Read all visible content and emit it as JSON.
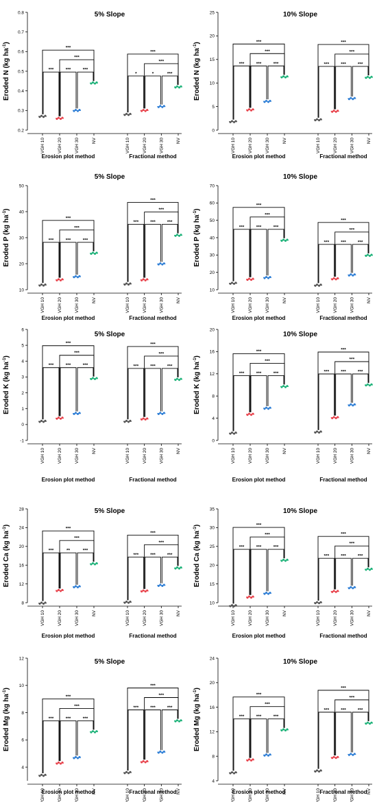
{
  "chart_data": [
    {
      "type": "scatter",
      "title": "5% Slope",
      "ylabel": "Eroded N (kg ha",
      "ylabel_sup": "-1",
      "ylabel_end": ")",
      "ylim": [
        0.2,
        0.8
      ],
      "yticks": [
        "0.2",
        "0.3",
        "0.4",
        "0.5",
        "0.6",
        "0.7",
        "0.8"
      ],
      "groups": [
        {
          "name": "Erosion plot method",
          "categories": [
            "VGH 10",
            "VGH 20",
            "VGH 30",
            "NV"
          ],
          "values": [
            0.27,
            0.26,
            0.3,
            0.44
          ],
          "brackets": [
            [
              "VGH 10",
              "VGH 20",
              "***"
            ],
            [
              "VGH 20",
              "VGH 30",
              "***"
            ],
            [
              "VGH 30",
              "NV",
              "***"
            ],
            [
              "VGH 20",
              "NV",
              "***"
            ],
            [
              "VGH 10",
              "NV",
              "***"
            ]
          ]
        },
        {
          "name": "Fractional method",
          "categories": [
            "VGH 10",
            "VGH 20",
            "VGH 30",
            "NV"
          ],
          "values": [
            0.28,
            0.3,
            0.32,
            0.42
          ],
          "brackets": [
            [
              "VGH 10",
              "VGH 20",
              "*"
            ],
            [
              "VGH 20",
              "VGH 30",
              "*"
            ],
            [
              "VGH 30",
              "NV",
              "***"
            ],
            [
              "VGH 20",
              "NV",
              "***"
            ],
            [
              "VGH 10",
              "NV",
              "***"
            ]
          ]
        }
      ]
    },
    {
      "type": "scatter",
      "title": "10% Slope",
      "ylabel": "Eroded N (kg ha",
      "ylabel_sup": "-1",
      "ylabel_end": ")",
      "ylim": [
        0,
        25
      ],
      "yticks": [
        "0",
        "5",
        "10",
        "15",
        "20",
        "25"
      ],
      "groups": [
        {
          "name": "Erosion plot method",
          "categories": [
            "VGH 10",
            "VGH 20",
            "VGH 30",
            "NV"
          ],
          "values": [
            1.8,
            4.3,
            6.1,
            11.3
          ],
          "brackets": [
            [
              "VGH 10",
              "VGH 20",
              "***"
            ],
            [
              "VGH 20",
              "VGH 30",
              "***"
            ],
            [
              "VGH 30",
              "NV",
              "***"
            ],
            [
              "VGH 20",
              "NV",
              "***"
            ],
            [
              "VGH 10",
              "NV",
              "***"
            ]
          ]
        },
        {
          "name": "Fractional method",
          "categories": [
            "VGH 10",
            "VGH 20",
            "VGH 30",
            "NV"
          ],
          "values": [
            2.2,
            4.0,
            6.7,
            11.2
          ],
          "brackets": [
            [
              "VGH 10",
              "VGH 20",
              "***"
            ],
            [
              "VGH 20",
              "VGH 30",
              "***"
            ],
            [
              "VGH 30",
              "NV",
              "***"
            ],
            [
              "VGH 20",
              "NV",
              "***"
            ],
            [
              "VGH 10",
              "NV",
              "***"
            ]
          ]
        }
      ]
    },
    {
      "type": "scatter",
      "title": "5% Slope",
      "ylabel": "Eroded P (kg ha",
      "ylabel_sup": "-1",
      "ylabel_end": ")",
      "ylim": [
        10,
        50
      ],
      "yticks": [
        "10",
        "20",
        "30",
        "40",
        "50"
      ],
      "groups": [
        {
          "name": "Erosion plot method",
          "categories": [
            "VGH 10",
            "VGH 20",
            "VGH 30",
            "NV"
          ],
          "values": [
            11.8,
            13.8,
            15.0,
            24.0
          ],
          "brackets": [
            [
              "VGH 10",
              "VGH 20",
              "***"
            ],
            [
              "VGH 20",
              "VGH 30",
              "***"
            ],
            [
              "VGH 30",
              "NV",
              "***"
            ],
            [
              "VGH 20",
              "NV",
              "***"
            ],
            [
              "VGH 10",
              "NV",
              "***"
            ]
          ]
        },
        {
          "name": "Fractional method",
          "categories": [
            "VGH 10",
            "VGH 20",
            "VGH 30",
            "NV"
          ],
          "values": [
            12.2,
            13.8,
            19.9,
            30.9
          ],
          "brackets": [
            [
              "VGH 10",
              "VGH 20",
              "***"
            ],
            [
              "VGH 20",
              "VGH 30",
              "***"
            ],
            [
              "VGH 30",
              "NV",
              "***"
            ],
            [
              "VGH 20",
              "NV",
              "***"
            ],
            [
              "VGH 10",
              "NV",
              "***"
            ]
          ]
        }
      ]
    },
    {
      "type": "scatter",
      "title": "10% Slope",
      "ylabel": "Eroded P (kg ha",
      "ylabel_sup": "-1",
      "ylabel_end": ")",
      "ylim": [
        10,
        70
      ],
      "yticks": [
        "10",
        "20",
        "30",
        "40",
        "50",
        "60",
        "70"
      ],
      "groups": [
        {
          "name": "Erosion plot method",
          "categories": [
            "VGH 10",
            "VGH 20",
            "VGH 30",
            "NV"
          ],
          "values": [
            13.7,
            16.0,
            17.0,
            38.5
          ],
          "brackets": [
            [
              "VGH 10",
              "VGH 20",
              "***"
            ],
            [
              "VGH 20",
              "VGH 30",
              "***"
            ],
            [
              "VGH 30",
              "NV",
              "***"
            ],
            [
              "VGH 20",
              "NV",
              "***"
            ],
            [
              "VGH 10",
              "NV",
              "***"
            ]
          ]
        },
        {
          "name": "Fractional method",
          "categories": [
            "VGH 10",
            "VGH 20",
            "VGH 30",
            "NV"
          ],
          "values": [
            12.6,
            16.3,
            18.5,
            29.8
          ],
          "brackets": [
            [
              "VGH 10",
              "VGH 20",
              "***"
            ],
            [
              "VGH 20",
              "VGH 30",
              "***"
            ],
            [
              "VGH 30",
              "NV",
              "***"
            ],
            [
              "VGH 20",
              "NV",
              "***"
            ],
            [
              "VGH 10",
              "NV",
              "***"
            ]
          ]
        }
      ]
    },
    {
      "type": "scatter",
      "title": "5% Slope",
      "ylabel": "Eroded K (kg ha",
      "ylabel_sup": "-1",
      "ylabel_end": ")",
      "ylim": [
        -1,
        6
      ],
      "yticks": [
        "-1",
        "0",
        "1",
        "2",
        "3",
        "4",
        "5",
        "6"
      ],
      "groups": [
        {
          "name": "Erosion plot method",
          "categories": [
            "VGH 10",
            "VGH 20",
            "VGH 30",
            "NV"
          ],
          "values": [
            0.2,
            0.4,
            0.7,
            2.9
          ],
          "brackets": [
            [
              "VGH 10",
              "VGH 20",
              "***"
            ],
            [
              "VGH 20",
              "VGH 30",
              "***"
            ],
            [
              "VGH 30",
              "NV",
              "***"
            ],
            [
              "VGH 20",
              "NV",
              "***"
            ],
            [
              "VGH 10",
              "NV",
              "***"
            ]
          ]
        },
        {
          "name": "Fractional method",
          "categories": [
            "VGH 10",
            "VGH 20",
            "VGH 30",
            "NV"
          ],
          "values": [
            0.2,
            0.35,
            0.7,
            2.85
          ],
          "brackets": [
            [
              "VGH 10",
              "VGH 20",
              "***"
            ],
            [
              "VGH 20",
              "VGH 30",
              "***"
            ],
            [
              "VGH 30",
              "NV",
              "***"
            ],
            [
              "VGH 20",
              "NV",
              "***"
            ],
            [
              "VGH 10",
              "NV",
              "***"
            ]
          ]
        }
      ]
    },
    {
      "type": "scatter",
      "title": "10% Slope",
      "ylabel": "Eroded K (kg ha",
      "ylabel_sup": "-1",
      "ylabel_end": ")",
      "ylim": [
        0,
        20
      ],
      "yticks": [
        "0",
        "4",
        "8",
        "12",
        "16",
        "20"
      ],
      "groups": [
        {
          "name": "Erosion plot method",
          "categories": [
            "VGH 10",
            "VGH 20",
            "VGH 30",
            "NV"
          ],
          "values": [
            1.3,
            4.7,
            5.8,
            9.7
          ],
          "brackets": [
            [
              "VGH 10",
              "VGH 20",
              "***"
            ],
            [
              "VGH 20",
              "VGH 30",
              "***"
            ],
            [
              "VGH 30",
              "NV",
              "***"
            ],
            [
              "VGH 20",
              "NV",
              "***"
            ],
            [
              "VGH 10",
              "NV",
              "***"
            ]
          ]
        },
        {
          "name": "Fractional method",
          "categories": [
            "VGH 10",
            "VGH 20",
            "VGH 30",
            "NV"
          ],
          "values": [
            1.5,
            4.1,
            6.4,
            10.0
          ],
          "brackets": [
            [
              "VGH 10",
              "VGH 20",
              "***"
            ],
            [
              "VGH 20",
              "VGH 30",
              "***"
            ],
            [
              "VGH 30",
              "NV",
              "***"
            ],
            [
              "VGH 20",
              "NV",
              "***"
            ],
            [
              "VGH 10",
              "NV",
              "***"
            ]
          ]
        }
      ]
    },
    {
      "type": "scatter",
      "title": "5% Slope",
      "ylabel": "Eroded Ca (kg ha",
      "ylabel_sup": "-1",
      "ylabel_end": ")",
      "ylim": [
        8,
        28
      ],
      "yticks": [
        "8",
        "12",
        "16",
        "20",
        "24",
        "28"
      ],
      "groups": [
        {
          "name": "Erosion plot method",
          "categories": [
            "VGH 10",
            "VGH 20",
            "VGH 30",
            "NV"
          ],
          "values": [
            7.9,
            10.6,
            11.4,
            16.3
          ],
          "brackets": [
            [
              "VGH 10",
              "VGH 20",
              "***"
            ],
            [
              "VGH 20",
              "VGH 30",
              "**"
            ],
            [
              "VGH 30",
              "NV",
              "***"
            ],
            [
              "VGH 20",
              "NV",
              "***"
            ],
            [
              "VGH 10",
              "NV",
              "***"
            ]
          ]
        },
        {
          "name": "Fractional method",
          "categories": [
            "VGH 10",
            "VGH 20",
            "VGH 30",
            "NV"
          ],
          "values": [
            8.1,
            10.5,
            11.7,
            15.4
          ],
          "brackets": [
            [
              "VGH 10",
              "VGH 20",
              "***"
            ],
            [
              "VGH 20",
              "VGH 30",
              "***"
            ],
            [
              "VGH 30",
              "NV",
              "***"
            ],
            [
              "VGH 20",
              "NV",
              "***"
            ],
            [
              "VGH 10",
              "NV",
              "***"
            ]
          ]
        }
      ]
    },
    {
      "type": "scatter",
      "title": "10% Slope",
      "ylabel": "Eroded Ca (kg ha",
      "ylabel_sup": "-1",
      "ylabel_end": ")",
      "ylim": [
        10,
        35
      ],
      "yticks": [
        "10",
        "15",
        "20",
        "25",
        "30",
        "35"
      ],
      "groups": [
        {
          "name": "Erosion plot method",
          "categories": [
            "VGH 10",
            "VGH 20",
            "VGH 30",
            "NV"
          ],
          "values": [
            9.2,
            11.5,
            12.5,
            21.3
          ],
          "brackets": [
            [
              "VGH 10",
              "VGH 20",
              "***"
            ],
            [
              "VGH 20",
              "VGH 30",
              "***"
            ],
            [
              "VGH 30",
              "NV",
              "***"
            ],
            [
              "VGH 20",
              "NV",
              "***"
            ],
            [
              "VGH 10",
              "NV",
              "***"
            ]
          ]
        },
        {
          "name": "Fractional method",
          "categories": [
            "VGH 10",
            "VGH 20",
            "VGH 30",
            "NV"
          ],
          "values": [
            10.0,
            13.0,
            14.0,
            18.9
          ],
          "brackets": [
            [
              "VGH 10",
              "VGH 20",
              "***"
            ],
            [
              "VGH 20",
              "VGH 30",
              "***"
            ],
            [
              "VGH 30",
              "NV",
              "***"
            ],
            [
              "VGH 20",
              "NV",
              "***"
            ],
            [
              "VGH 10",
              "NV",
              "***"
            ]
          ]
        }
      ]
    },
    {
      "type": "scatter",
      "title": "5% Slope",
      "ylabel": "Eroded Mg (kg ha",
      "ylabel_sup": "-1",
      "ylabel_end": ")",
      "ylim": [
        3,
        12
      ],
      "yticks": [
        "4",
        "6",
        "8",
        "10",
        "12"
      ],
      "groups": [
        {
          "name": "Erosion plot method",
          "categories": [
            "VGH 10",
            "VGH 20",
            "VGH 30",
            "NV"
          ],
          "values": [
            3.4,
            4.3,
            4.7,
            6.6
          ],
          "brackets": [
            [
              "VGH 10",
              "VGH 20",
              "***"
            ],
            [
              "VGH 20",
              "VGH 30",
              "***"
            ],
            [
              "VGH 30",
              "NV",
              "***"
            ],
            [
              "VGH 20",
              "NV",
              "***"
            ],
            [
              "VGH 10",
              "NV",
              "***"
            ]
          ]
        },
        {
          "name": "Fractional method",
          "categories": [
            "VGH 10",
            "VGH 20",
            "VGH 30",
            "NV"
          ],
          "values": [
            3.6,
            4.4,
            5.1,
            7.4
          ],
          "brackets": [
            [
              "VGH 10",
              "VGH 20",
              "***"
            ],
            [
              "VGH 20",
              "VGH 30",
              "***"
            ],
            [
              "VGH 30",
              "NV",
              "***"
            ],
            [
              "VGH 20",
              "NV",
              "***"
            ],
            [
              "VGH 10",
              "NV",
              "***"
            ]
          ]
        }
      ]
    },
    {
      "type": "scatter",
      "title": "10% Slope",
      "ylabel": "Eroded Mg (kg ha",
      "ylabel_sup": "-1",
      "ylabel_end": ")",
      "ylim": [
        4,
        24
      ],
      "yticks": [
        "4",
        "8",
        "12",
        "16",
        "20",
        "24"
      ],
      "groups": [
        {
          "name": "Erosion plot method",
          "categories": [
            "VGH 10",
            "VGH 20",
            "VGH 30",
            "NV"
          ],
          "values": [
            5.3,
            7.4,
            8.2,
            12.3
          ],
          "brackets": [
            [
              "VGH 10",
              "VGH 20",
              "***"
            ],
            [
              "VGH 20",
              "VGH 30",
              "***"
            ],
            [
              "VGH 30",
              "NV",
              "***"
            ],
            [
              "VGH 20",
              "NV",
              "***"
            ],
            [
              "VGH 10",
              "NV",
              "***"
            ]
          ]
        },
        {
          "name": "Fractional method",
          "categories": [
            "VGH 10",
            "VGH 20",
            "VGH 30",
            "NV"
          ],
          "values": [
            5.6,
            7.8,
            8.3,
            13.4
          ],
          "brackets": [
            [
              "VGH 10",
              "VGH 20",
              "***"
            ],
            [
              "VGH 20",
              "VGH 30",
              "***"
            ],
            [
              "VGH 30",
              "NV",
              "***"
            ],
            [
              "VGH 20",
              "NV",
              "***"
            ],
            [
              "VGH 10",
              "NV",
              "***"
            ]
          ]
        }
      ]
    }
  ],
  "series_colors": [
    "#555555",
    "#e8434c",
    "#2f7fd6",
    "#1fb37a"
  ]
}
